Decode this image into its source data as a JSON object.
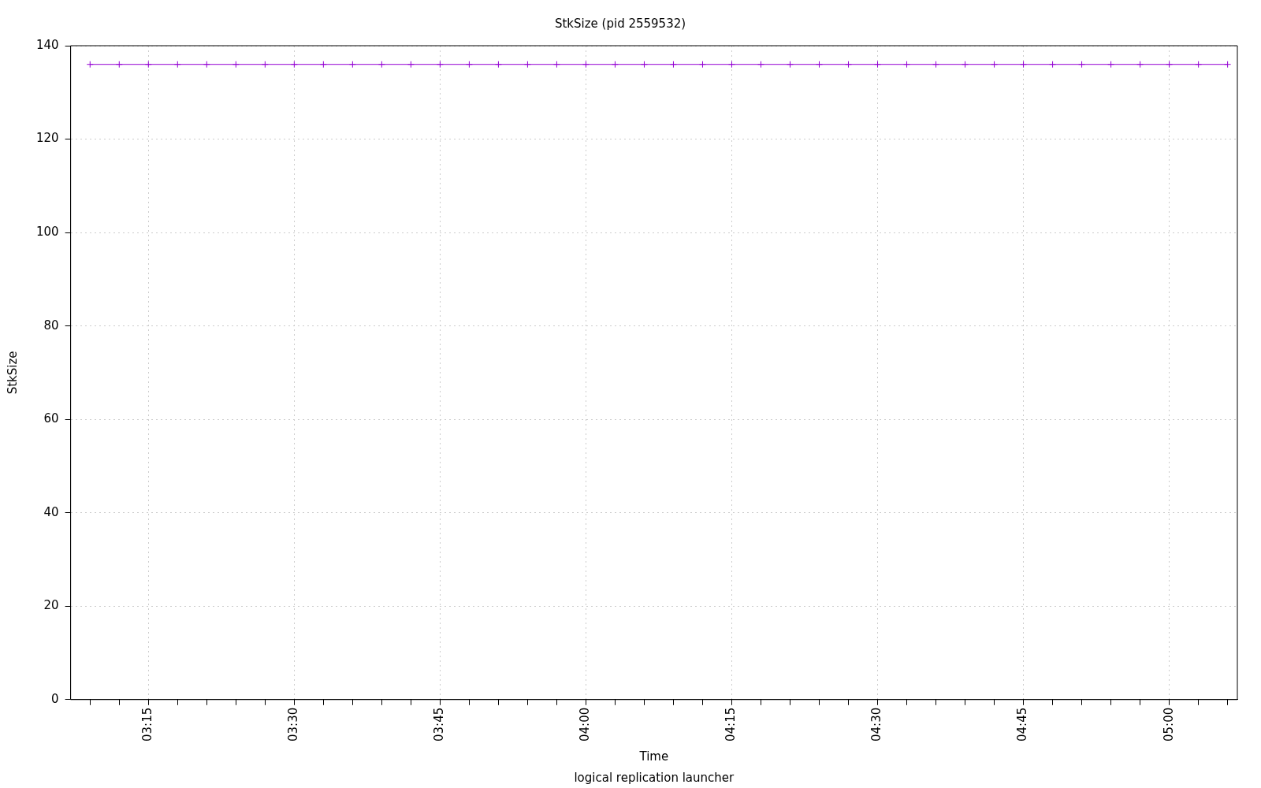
{
  "chart_data": {
    "type": "line",
    "title": "StkSize (pid 2559532)",
    "xlabel": "Time",
    "ylabel": "StkSize",
    "annotations": [
      "logical replication launcher"
    ],
    "x": [
      3.15,
      3.2,
      3.25,
      3.3,
      3.35,
      3.4,
      3.45,
      3.5,
      3.55,
      3.6,
      3.65,
      3.7,
      3.75,
      3.8,
      3.85,
      3.9,
      3.95,
      4.0,
      4.05,
      4.1,
      4.15,
      4.2,
      4.25,
      4.3,
      4.35,
      4.4,
      4.45,
      4.5,
      4.55,
      4.6,
      4.65,
      4.7,
      4.75,
      4.8,
      4.85,
      4.9,
      4.95,
      5.0,
      5.05,
      5.1
    ],
    "series": [
      {
        "color": "#9400d3",
        "values": [
          136,
          136,
          136,
          136,
          136,
          136,
          136,
          136,
          136,
          136,
          136,
          136,
          136,
          136,
          136,
          136,
          136,
          136,
          136,
          136,
          136,
          136,
          136,
          136,
          136,
          136,
          136,
          136,
          136,
          136,
          136,
          136,
          136,
          136,
          136,
          136,
          136,
          136,
          136,
          136
        ]
      }
    ],
    "xlim": [
      3.1167,
      5.1167
    ],
    "xticks": [
      {
        "value": 3.15,
        "label": null
      },
      {
        "value": 3.2,
        "label": null
      },
      {
        "value": 3.25,
        "label": "03:15"
      },
      {
        "value": 3.3,
        "label": null
      },
      {
        "value": 3.35,
        "label": null
      },
      {
        "value": 3.4,
        "label": null
      },
      {
        "value": 3.45,
        "label": null
      },
      {
        "value": 3.5,
        "label": "03:30"
      },
      {
        "value": 3.55,
        "label": null
      },
      {
        "value": 3.6,
        "label": null
      },
      {
        "value": 3.65,
        "label": null
      },
      {
        "value": 3.7,
        "label": null
      },
      {
        "value": 3.75,
        "label": "03:45"
      },
      {
        "value": 3.8,
        "label": null
      },
      {
        "value": 3.85,
        "label": null
      },
      {
        "value": 3.9,
        "label": null
      },
      {
        "value": 3.95,
        "label": null
      },
      {
        "value": 4.0,
        "label": "04:00"
      },
      {
        "value": 4.05,
        "label": null
      },
      {
        "value": 4.1,
        "label": null
      },
      {
        "value": 4.15,
        "label": null
      },
      {
        "value": 4.2,
        "label": null
      },
      {
        "value": 4.25,
        "label": "04:15"
      },
      {
        "value": 4.3,
        "label": null
      },
      {
        "value": 4.35,
        "label": null
      },
      {
        "value": 4.4,
        "label": null
      },
      {
        "value": 4.45,
        "label": null
      },
      {
        "value": 4.5,
        "label": "04:30"
      },
      {
        "value": 4.55,
        "label": null
      },
      {
        "value": 4.6,
        "label": null
      },
      {
        "value": 4.65,
        "label": null
      },
      {
        "value": 4.7,
        "label": null
      },
      {
        "value": 4.75,
        "label": "04:45"
      },
      {
        "value": 4.8,
        "label": null
      },
      {
        "value": 4.85,
        "label": null
      },
      {
        "value": 4.9,
        "label": null
      },
      {
        "value": 4.95,
        "label": null
      },
      {
        "value": 5.0,
        "label": "05:00"
      },
      {
        "value": 5.05,
        "label": null
      },
      {
        "value": 5.1,
        "label": null
      }
    ],
    "ylim": [
      0,
      140
    ],
    "yticks": [
      0,
      20,
      40,
      60,
      80,
      100,
      120,
      140
    ],
    "grid": true,
    "marker": "cross",
    "line_style": "solid",
    "legend": false
  }
}
